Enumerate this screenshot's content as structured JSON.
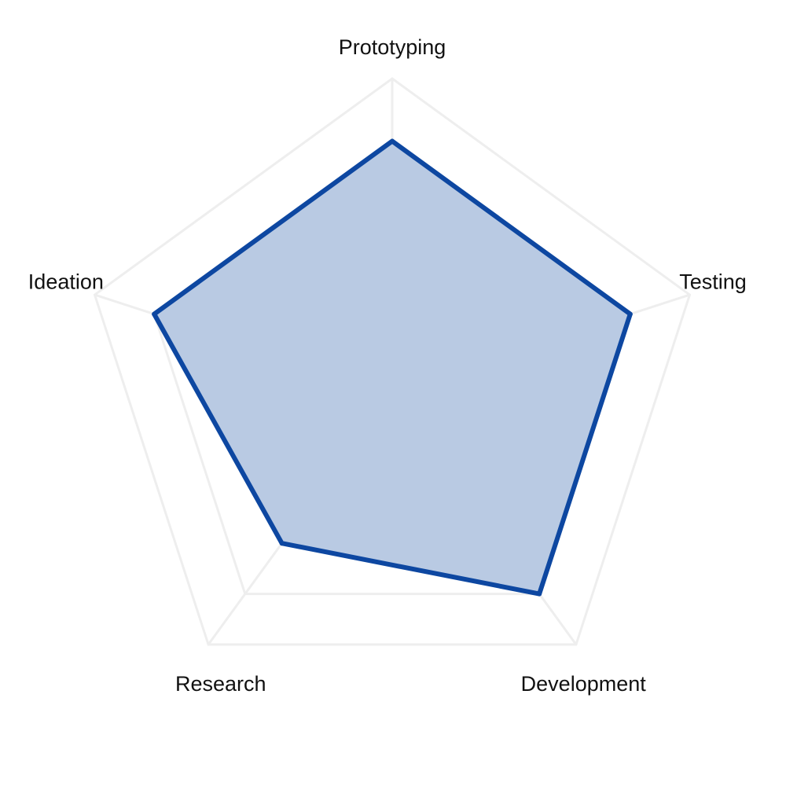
{
  "chart_data": {
    "type": "radar",
    "categories": [
      "Prototyping",
      "Testing",
      "Development",
      "Research",
      "Ideation"
    ],
    "series": [
      {
        "values": [
          80,
          80,
          80,
          60,
          80
        ],
        "color": "#0d47a1",
        "fill": "#b5c7e2"
      }
    ],
    "rlim": [
      0,
      100
    ],
    "grid_levels": [
      20,
      40,
      60,
      80,
      100
    ],
    "grid": true,
    "grid_color": "#eeeeee",
    "legend": "none"
  }
}
